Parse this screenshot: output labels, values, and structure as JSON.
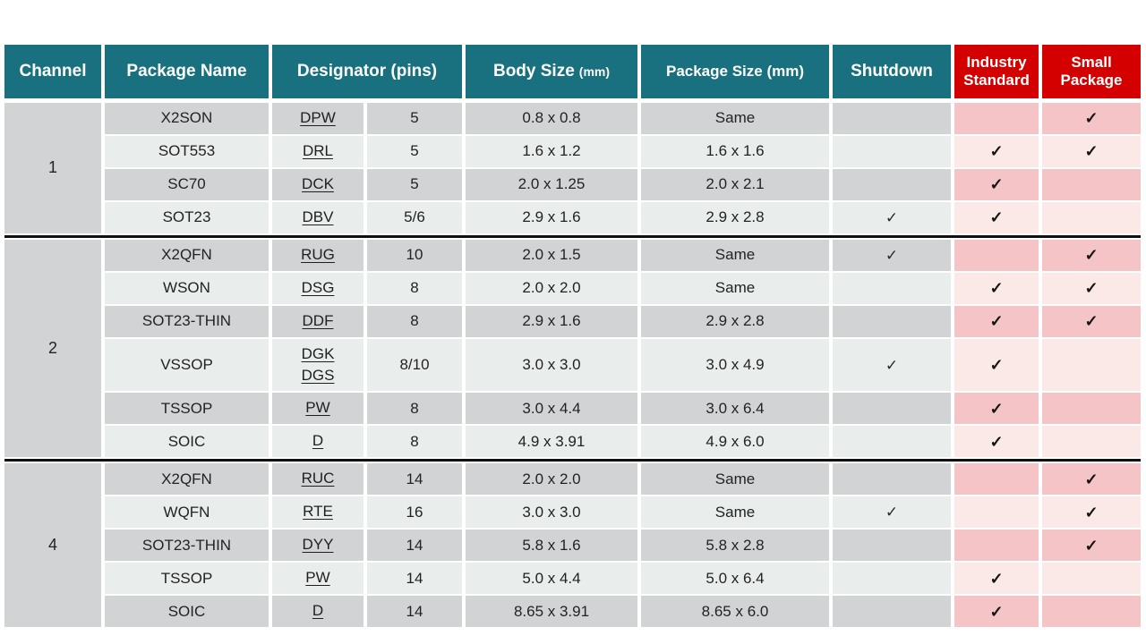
{
  "colors": {
    "teal": "#19707f",
    "red": "#d40000",
    "row_dark": "#d1d3d4",
    "row_light": "#e9edec",
    "pink_dark": "#f4c4c6",
    "pink_light": "#fbe9e8",
    "header_text": "#ffffff",
    "body_text": "#232323"
  },
  "glyphs": {
    "check": "✓"
  },
  "header": {
    "channel": "Channel",
    "package_name": "Package Name",
    "designator": "Designator (pins)",
    "body_size": "Body Size",
    "body_size_unit": "(mm)",
    "package_size": "Package Size (mm)",
    "shutdown": "Shutdown",
    "industry_line1": "Industry",
    "industry_line2": "Standard",
    "small_line1": "Small",
    "small_line2": "Package"
  },
  "groups": [
    {
      "channel": "1",
      "rows": [
        {
          "package": "X2SON",
          "designators": [
            "DPW"
          ],
          "pins": "5",
          "body": "0.8 x 0.8",
          "pkg": "Same",
          "shutdown": false,
          "industry": false,
          "small": true
        },
        {
          "package": "SOT553",
          "designators": [
            "DRL"
          ],
          "pins": "5",
          "body": "1.6 x 1.2",
          "pkg": "1.6 x 1.6",
          "shutdown": false,
          "industry": true,
          "small": true
        },
        {
          "package": "SC70",
          "designators": [
            "DCK"
          ],
          "pins": "5",
          "body": "2.0 x 1.25",
          "pkg": "2.0 x 2.1",
          "shutdown": false,
          "industry": true,
          "small": false
        },
        {
          "package": "SOT23",
          "designators": [
            "DBV"
          ],
          "pins": "5/6",
          "body": "2.9 x 1.6",
          "pkg": "2.9 x 2.8",
          "shutdown": true,
          "industry": true,
          "small": false
        }
      ]
    },
    {
      "channel": "2",
      "rows": [
        {
          "package": "X2QFN",
          "designators": [
            "RUG"
          ],
          "pins": "10",
          "body": "2.0 x 1.5",
          "pkg": "Same",
          "shutdown": true,
          "industry": false,
          "small": true
        },
        {
          "package": "WSON",
          "designators": [
            "DSG"
          ],
          "pins": "8",
          "body": "2.0 x 2.0",
          "pkg": "Same",
          "shutdown": false,
          "industry": true,
          "small": true
        },
        {
          "package": "SOT23-THIN",
          "designators": [
            "DDF"
          ],
          "pins": "8",
          "body": "2.9 x 1.6",
          "pkg": "2.9 x 2.8",
          "shutdown": false,
          "industry": true,
          "small": true
        },
        {
          "package": "VSSOP",
          "designators": [
            "DGK",
            "DGS"
          ],
          "pins": "8/10",
          "body": "3.0 x 3.0",
          "pkg": "3.0 x 4.9",
          "shutdown": true,
          "industry": true,
          "small": false
        },
        {
          "package": "TSSOP",
          "designators": [
            "PW"
          ],
          "pins": "8",
          "body": "3.0 x 4.4",
          "pkg": "3.0 x 6.4",
          "shutdown": false,
          "industry": true,
          "small": false
        },
        {
          "package": "SOIC",
          "designators": [
            "D"
          ],
          "pins": "8",
          "body": "4.9 x 3.91",
          "pkg": "4.9 x 6.0",
          "shutdown": false,
          "industry": true,
          "small": false
        }
      ]
    },
    {
      "channel": "4",
      "rows": [
        {
          "package": "X2QFN",
          "designators": [
            "RUC"
          ],
          "pins": "14",
          "body": "2.0 x 2.0",
          "pkg": "Same",
          "shutdown": false,
          "industry": false,
          "small": true
        },
        {
          "package": "WQFN",
          "designators": [
            "RTE"
          ],
          "pins": "16",
          "body": "3.0 x 3.0",
          "pkg": "Same",
          "shutdown": true,
          "industry": false,
          "small": true
        },
        {
          "package": "SOT23-THIN",
          "designators": [
            "DYY"
          ],
          "pins": "14",
          "body": "5.8 x 1.6",
          "pkg": "5.8 x 2.8",
          "shutdown": false,
          "industry": false,
          "small": true
        },
        {
          "package": "TSSOP",
          "designators": [
            "PW"
          ],
          "pins": "14",
          "body": "5.0 x 4.4",
          "pkg": "5.0 x 6.4",
          "shutdown": false,
          "industry": true,
          "small": false
        },
        {
          "package": "SOIC",
          "designators": [
            "D"
          ],
          "pins": "14",
          "body": "8.65 x 3.91",
          "pkg": "8.65 x 6.0",
          "shutdown": false,
          "industry": true,
          "small": false
        }
      ]
    }
  ]
}
